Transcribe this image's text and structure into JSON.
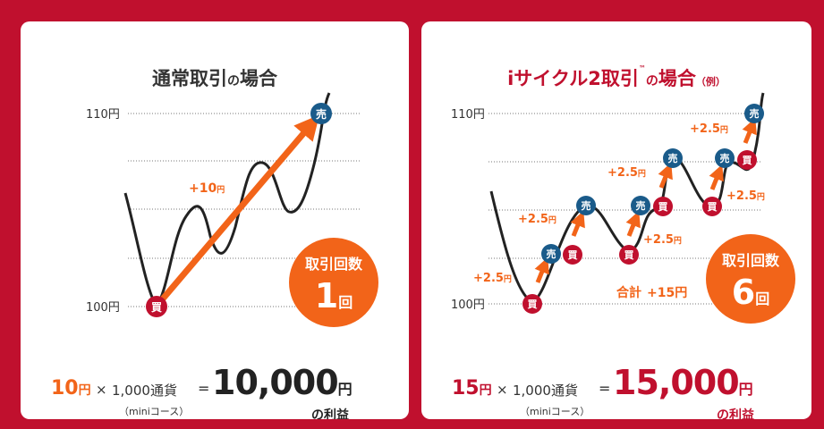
{
  "left": {
    "title_main": "通常取引",
    "title_no": "の",
    "title_end": "場合",
    "y_labels": [
      "110円",
      "100円"
    ],
    "gain_label": "+10",
    "gain_unit": "円",
    "sell": "売",
    "buy": "買",
    "count_label": "取引回数",
    "count_value": "1",
    "count_unit": "回",
    "formula": {
      "num": "10",
      "num_unit": "円",
      "mult": "×",
      "amount": "1,000通貨",
      "eq": "=",
      "result": "10,000",
      "result_unit": "円",
      "sub": "（miniコース）",
      "profit": "の利益"
    }
  },
  "right": {
    "title_main": "iサイクル2取引",
    "title_tm": "™",
    "title_no": "の",
    "title_end": "場合",
    "title_ex": "（例）",
    "y_labels": [
      "110円",
      "100円"
    ],
    "gain_label": "+2.5",
    "gain_unit": "円",
    "sell": "売",
    "buy": "買",
    "total_label": "合計",
    "total_value": "+15円",
    "count_label": "取引回数",
    "count_value": "6",
    "count_unit": "回",
    "formula": {
      "num": "15",
      "num_unit": "円",
      "mult": "×",
      "amount": "1,000通貨",
      "eq": "=",
      "result": "15,000",
      "result_unit": "円",
      "sub": "（miniコース）",
      "profit": "の利益"
    }
  },
  "colors": {
    "red": "#c0102e",
    "orange": "#f26419",
    "blue": "#1a5b8a",
    "dark": "#222222"
  }
}
